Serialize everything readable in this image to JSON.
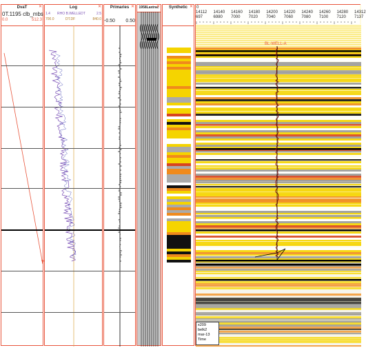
{
  "tracks": {
    "dvat": {
      "title": "DvaT",
      "subtitle": "0T.1195 clb_mbs",
      "scale_min": "0.0",
      "scale_max": "512.3",
      "curve_color": "#e8543a"
    },
    "log": {
      "title": "Log",
      "curve1_label": "RHO B.WELLEDT",
      "curve1_min": "1.4",
      "curve1_max": "2.5",
      "curve2_label": "DT.DF",
      "curve2_min": "700.0",
      "curve2_max": "840.0",
      "curve_color": "#7a4fb5"
    },
    "primaries": {
      "title": "Primaries",
      "scale_min": "-0.50",
      "scale_max": "0.50"
    },
    "wavelet": {
      "title": "1958Laxtrac"
    },
    "synthetic": {
      "title": "Synthetic"
    },
    "seismic": {
      "axis_top_left": "0",
      "cdp_labels": [
        "14112",
        "14140",
        "14160",
        "14180",
        "14200",
        "14220",
        "14240",
        "14260",
        "14280",
        "14312"
      ],
      "tick_labels": [
        "697",
        "6980",
        "7000",
        "7020",
        "7040",
        "7060",
        "7080",
        "7100",
        "7120",
        "7137"
      ],
      "well_label": "BL-WELL-A",
      "info_lines": [
        "x209",
        "belk2",
        "mar-13",
        "Time"
      ]
    }
  },
  "colors": {
    "border": "#e8543a",
    "seis_yellow": "#f5d400",
    "seis_orange": "#f08a1c",
    "seis_red": "#d8431e",
    "seis_black": "#111111",
    "wavelet_bg": "#c9c9c9"
  }
}
